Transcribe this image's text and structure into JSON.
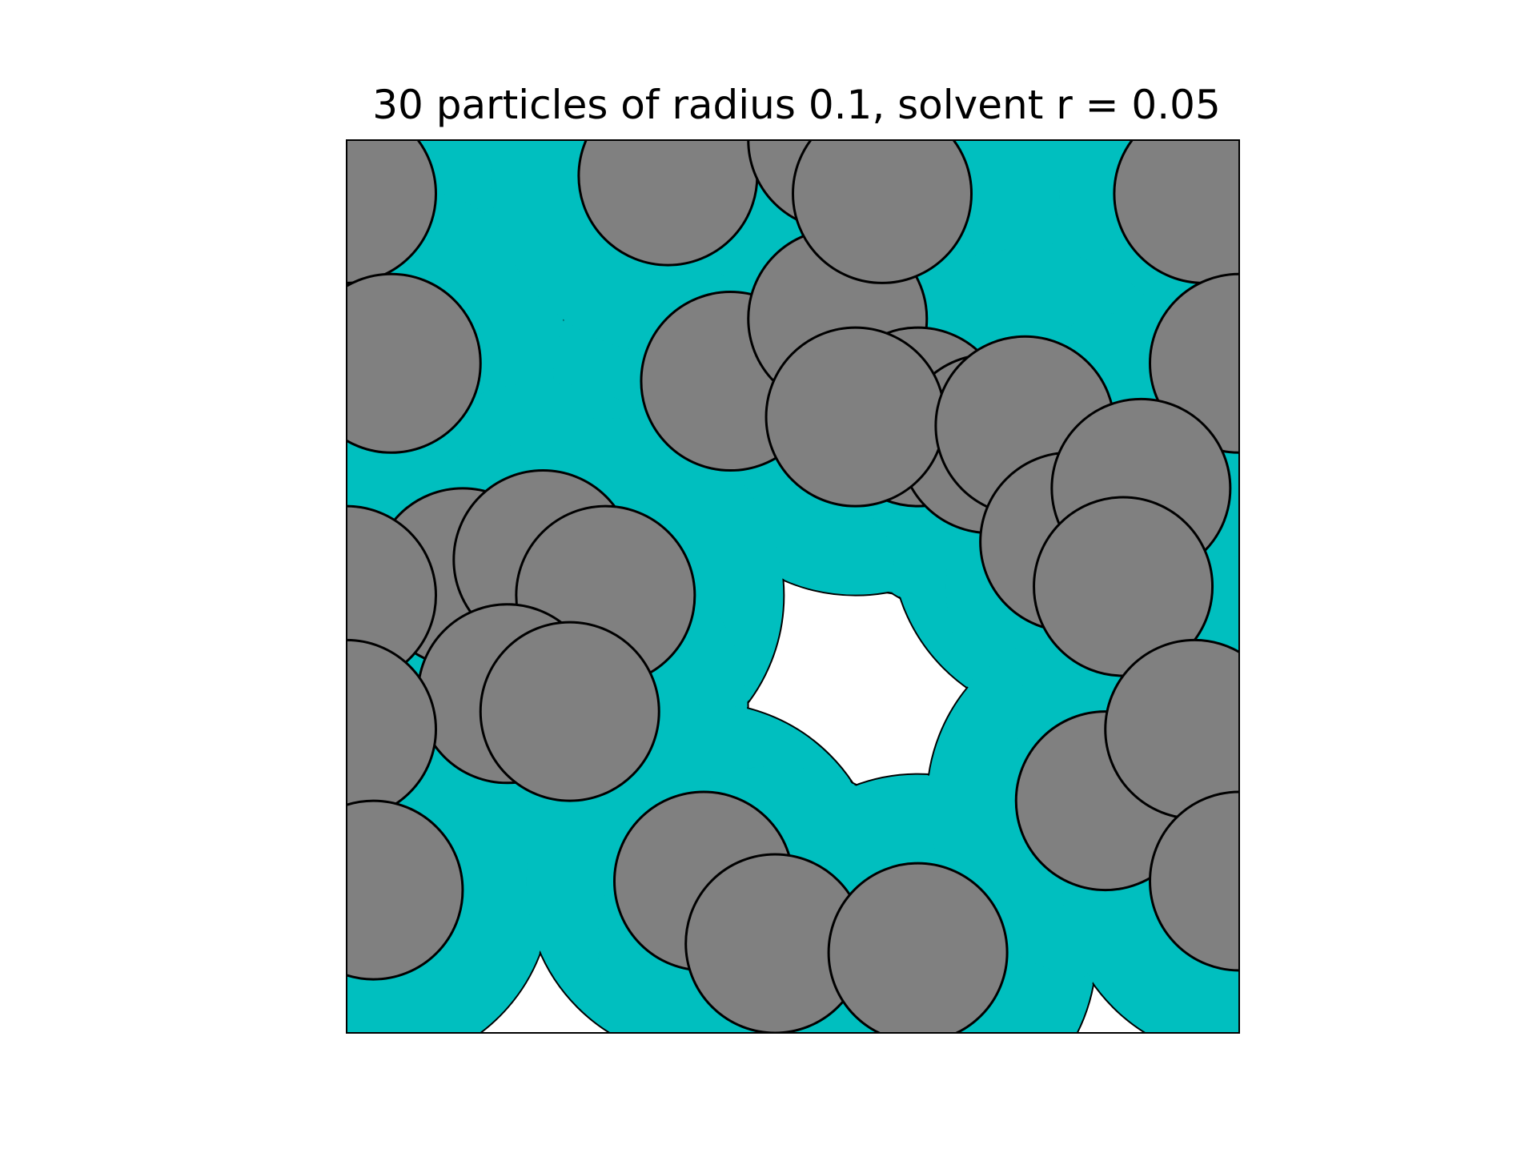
{
  "chart_data": {
    "type": "scatter",
    "title": "30 particles of radius 0.1, solvent r = 0.05",
    "xlabel": "",
    "ylabel": "",
    "xlim": [
      0,
      1
    ],
    "ylim": [
      0,
      1
    ],
    "axes_visible": false,
    "grid": false,
    "particle_radius": 0.1,
    "solvent_radius": 0.05,
    "particle_color": "#808080",
    "solvent_color": "#00bfbf",
    "edge_color": "#000000",
    "series": [
      {
        "x": [
          0.0,
          0.05,
          0.43,
          0.55,
          0.64,
          0.72,
          0.57,
          0.96,
          1.0,
          0.13,
          0.36,
          0.22,
          0.29,
          0.0,
          0.55,
          0.6,
          0.76,
          0.81,
          0.89,
          0.87,
          0.18,
          0.25,
          0.0,
          0.03,
          0.4,
          0.48,
          0.64,
          0.85,
          0.95,
          1.0
        ],
        "y": [
          0.94,
          0.75,
          0.73,
          0.8,
          0.69,
          0.66,
          0.69,
          0.94,
          0.75,
          0.51,
          0.96,
          0.53,
          0.49,
          0.49,
          1.0,
          0.94,
          0.68,
          0.55,
          0.61,
          0.5,
          0.38,
          0.36,
          0.34,
          0.16,
          0.17,
          0.1,
          0.09,
          0.26,
          0.34,
          0.17
        ]
      }
    ]
  }
}
